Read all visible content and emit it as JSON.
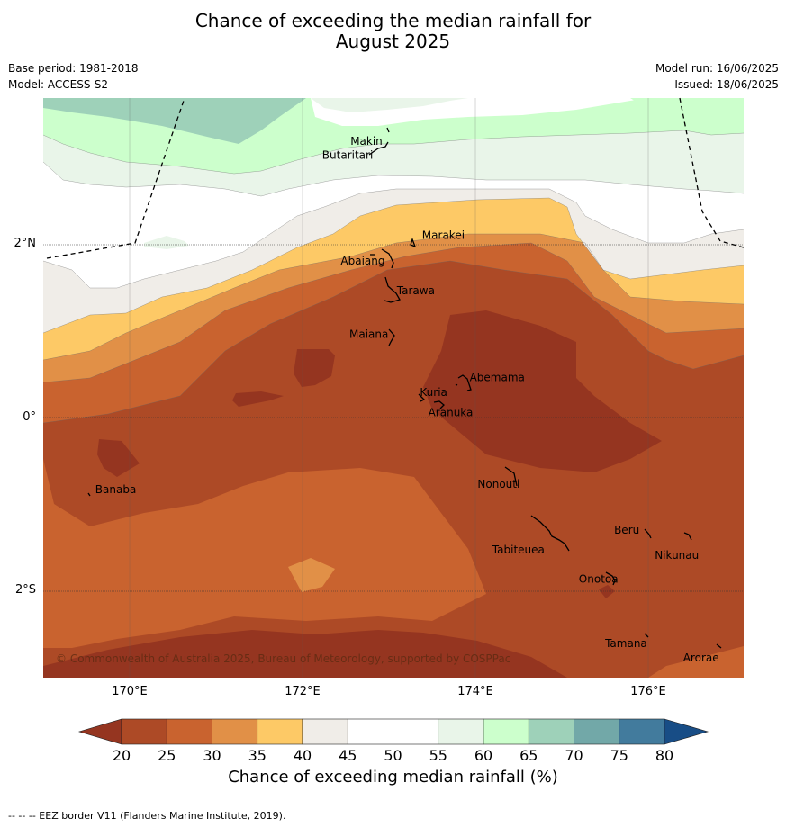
{
  "title": {
    "line1": "Chance of exceeding the median rainfall for",
    "line2": "August 2025"
  },
  "meta_left": {
    "base_period": "Base period: 1981-2018",
    "model": "Model: ACCESS-S2"
  },
  "meta_right": {
    "model_run": "Model run: 16/06/2025",
    "issued": "Issued: 18/06/2025"
  },
  "axes": {
    "lon_labels": [
      "170°E",
      "172°E",
      "174°E",
      "176°E"
    ],
    "lat_labels": [
      "2°N",
      "0°",
      "2°S"
    ]
  },
  "places": [
    {
      "name": "Makin",
      "lon": 172.95,
      "lat": 3.2
    },
    {
      "name": "Butaritari",
      "lon": 172.8,
      "lat": 3.05
    },
    {
      "name": "Marakei",
      "lon": 173.3,
      "lat": 2.0
    },
    {
      "name": "Abaiang",
      "lon": 172.9,
      "lat": 1.85
    },
    {
      "name": "Tarawa",
      "lon": 173.05,
      "lat": 1.4
    },
    {
      "name": "Maiana",
      "lon": 173.0,
      "lat": 0.9
    },
    {
      "name": "Abemama",
      "lon": 173.85,
      "lat": 0.4
    },
    {
      "name": "Kuria",
      "lon": 173.4,
      "lat": 0.23
    },
    {
      "name": "Aranuka",
      "lon": 173.6,
      "lat": 0.18
    },
    {
      "name": "Nonouti",
      "lon": 174.4,
      "lat": -0.6
    },
    {
      "name": "Banaba",
      "lon": 169.55,
      "lat": -0.85
    },
    {
      "name": "Beru",
      "lon": 175.98,
      "lat": -1.3
    },
    {
      "name": "Nikunau",
      "lon": 176.45,
      "lat": -1.4
    },
    {
      "name": "Tabiteuea",
      "lon": 174.8,
      "lat": -1.3
    },
    {
      "name": "Onotoa",
      "lon": 175.55,
      "lat": -1.8
    },
    {
      "name": "Tamana",
      "lon": 175.98,
      "lat": -2.5
    },
    {
      "name": "Arorae",
      "lon": 176.82,
      "lat": -2.65
    }
  ],
  "copyright": "© Commonwealth of Australia 2025, Bureau of Meteorology, supported by COSPPac",
  "colorbar": {
    "ticks": [
      "20",
      "25",
      "30",
      "35",
      "40",
      "45",
      "50",
      "55",
      "60",
      "65",
      "70",
      "75",
      "80"
    ],
    "colors": [
      "#953520",
      "#ad4a26",
      "#c9632f",
      "#e19047",
      "#fdc966",
      "#f0ede8",
      "#ffffff",
      "#ffffff",
      "#e9f5e9",
      "#ccffcc",
      "#9ed1b9",
      "#72a8a8",
      "#427b9d",
      "#184d86"
    ],
    "label": "Chance of exceeding median rainfall (%)"
  },
  "footer": "-- -- -- EEZ border V11 (Flanders Marine Institute, 2019)."
}
